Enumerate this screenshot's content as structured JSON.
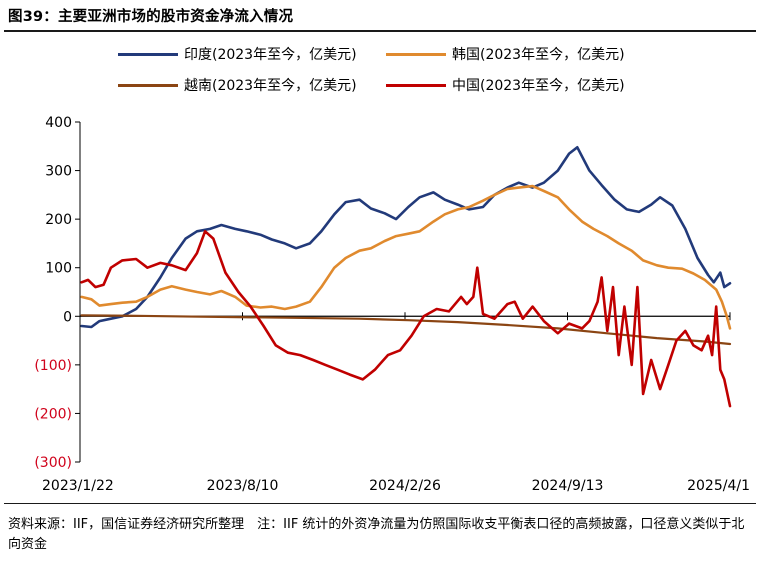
{
  "figure_title": "图39：主要亚洲市场的股市资金净流入情况",
  "source_note": "资料来源：IIF，国信证券经济研究所整理　注：IIF 统计的外资净流量为仿照国际收支平衡表口径的高频披露，口径意义类似于北向资金",
  "chart_data": {
    "type": "line",
    "title": "",
    "xlabel": "",
    "ylabel": "",
    "ylim": [
      -300,
      400
    ],
    "yticks": [
      -300,
      -200,
      -100,
      0,
      100,
      200,
      300,
      400
    ],
    "ytick_labels": [
      "(300)",
      "(200)",
      "(100)",
      "0",
      "100",
      "200",
      "300",
      "400"
    ],
    "negative_tick_color": "#d0021b",
    "xlim": [
      "2023-01-22",
      "2025-04-01"
    ],
    "xticks": [
      "2023-01-22",
      "2023-08-10",
      "2024-02-26",
      "2024-09-13",
      "2025-04-01"
    ],
    "xtick_labels": [
      "2023/1/22",
      "2023/8/10",
      "2024/2/26",
      "2024/9/13",
      "2025/4/1"
    ],
    "grid": false,
    "legend_position": "top",
    "series": [
      {
        "name": "印度(2023年至今，亿美元)",
        "color": "#223a7a",
        "points": [
          [
            "2023-01-24",
            -20
          ],
          [
            "2023-02-05",
            -22
          ],
          [
            "2023-02-15",
            -10
          ],
          [
            "2023-03-01",
            -5
          ],
          [
            "2023-03-15",
            0
          ],
          [
            "2023-04-01",
            15
          ],
          [
            "2023-04-15",
            40
          ],
          [
            "2023-05-01",
            80
          ],
          [
            "2023-05-15",
            120
          ],
          [
            "2023-06-01",
            160
          ],
          [
            "2023-06-15",
            175
          ],
          [
            "2023-07-01",
            180
          ],
          [
            "2023-07-15",
            188
          ],
          [
            "2023-08-01",
            180
          ],
          [
            "2023-08-15",
            175
          ],
          [
            "2023-09-01",
            168
          ],
          [
            "2023-09-15",
            158
          ],
          [
            "2023-10-01",
            150
          ],
          [
            "2023-10-15",
            140
          ],
          [
            "2023-11-01",
            150
          ],
          [
            "2023-11-15",
            175
          ],
          [
            "2023-12-01",
            210
          ],
          [
            "2023-12-15",
            235
          ],
          [
            "2024-01-01",
            240
          ],
          [
            "2024-01-15",
            222
          ],
          [
            "2024-02-01",
            212
          ],
          [
            "2024-02-15",
            200
          ],
          [
            "2024-03-01",
            225
          ],
          [
            "2024-03-15",
            245
          ],
          [
            "2024-04-01",
            255
          ],
          [
            "2024-04-15",
            240
          ],
          [
            "2024-05-01",
            230
          ],
          [
            "2024-05-15",
            220
          ],
          [
            "2024-06-01",
            225
          ],
          [
            "2024-06-15",
            250
          ],
          [
            "2024-07-01",
            265
          ],
          [
            "2024-07-15",
            275
          ],
          [
            "2024-08-01",
            265
          ],
          [
            "2024-08-15",
            275
          ],
          [
            "2024-09-01",
            300
          ],
          [
            "2024-09-15",
            335
          ],
          [
            "2024-09-25",
            348
          ],
          [
            "2024-10-10",
            300
          ],
          [
            "2024-10-25",
            270
          ],
          [
            "2024-11-10",
            240
          ],
          [
            "2024-11-25",
            220
          ],
          [
            "2024-12-10",
            215
          ],
          [
            "2024-12-25",
            230
          ],
          [
            "2025-01-05",
            245
          ],
          [
            "2025-01-20",
            228
          ],
          [
            "2025-02-05",
            180
          ],
          [
            "2025-02-20",
            120
          ],
          [
            "2025-03-05",
            85
          ],
          [
            "2025-03-12",
            70
          ],
          [
            "2025-03-20",
            90
          ],
          [
            "2025-03-25",
            60
          ],
          [
            "2025-04-01",
            68
          ]
        ]
      },
      {
        "name": "韩国(2023年至今，亿美元)",
        "color": "#e08a2e",
        "points": [
          [
            "2023-01-24",
            40
          ],
          [
            "2023-02-05",
            35
          ],
          [
            "2023-02-15",
            22
          ],
          [
            "2023-03-01",
            25
          ],
          [
            "2023-03-15",
            28
          ],
          [
            "2023-04-01",
            30
          ],
          [
            "2023-04-15",
            40
          ],
          [
            "2023-05-01",
            55
          ],
          [
            "2023-05-15",
            62
          ],
          [
            "2023-06-01",
            55
          ],
          [
            "2023-06-15",
            50
          ],
          [
            "2023-07-01",
            45
          ],
          [
            "2023-07-15",
            52
          ],
          [
            "2023-08-01",
            40
          ],
          [
            "2023-08-15",
            22
          ],
          [
            "2023-09-01",
            18
          ],
          [
            "2023-09-15",
            20
          ],
          [
            "2023-10-01",
            15
          ],
          [
            "2023-10-15",
            20
          ],
          [
            "2023-11-01",
            30
          ],
          [
            "2023-11-15",
            60
          ],
          [
            "2023-12-01",
            100
          ],
          [
            "2023-12-15",
            120
          ],
          [
            "2024-01-01",
            135
          ],
          [
            "2024-01-15",
            140
          ],
          [
            "2024-02-01",
            155
          ],
          [
            "2024-02-15",
            165
          ],
          [
            "2024-03-01",
            170
          ],
          [
            "2024-03-15",
            175
          ],
          [
            "2024-04-01",
            195
          ],
          [
            "2024-04-15",
            210
          ],
          [
            "2024-05-01",
            220
          ],
          [
            "2024-05-15",
            225
          ],
          [
            "2024-06-01",
            238
          ],
          [
            "2024-06-15",
            250
          ],
          [
            "2024-07-01",
            262
          ],
          [
            "2024-07-15",
            265
          ],
          [
            "2024-08-01",
            268
          ],
          [
            "2024-08-15",
            258
          ],
          [
            "2024-09-01",
            245
          ],
          [
            "2024-09-15",
            220
          ],
          [
            "2024-10-01",
            195
          ],
          [
            "2024-10-15",
            180
          ],
          [
            "2024-11-01",
            165
          ],
          [
            "2024-11-15",
            150
          ],
          [
            "2024-12-01",
            135
          ],
          [
            "2024-12-15",
            115
          ],
          [
            "2025-01-01",
            105
          ],
          [
            "2025-01-15",
            100
          ],
          [
            "2025-02-01",
            98
          ],
          [
            "2025-02-15",
            88
          ],
          [
            "2025-03-01",
            75
          ],
          [
            "2025-03-15",
            55
          ],
          [
            "2025-03-22",
            30
          ],
          [
            "2025-03-28",
            0
          ],
          [
            "2025-04-01",
            -25
          ]
        ]
      },
      {
        "name": "越南(2023年至今，亿美元)",
        "color": "#8b4513",
        "points": [
          [
            "2023-01-24",
            2
          ],
          [
            "2023-04-01",
            1
          ],
          [
            "2023-07-01",
            -1
          ],
          [
            "2023-10-01",
            -3
          ],
          [
            "2024-01-01",
            -5
          ],
          [
            "2024-03-01",
            -8
          ],
          [
            "2024-05-01",
            -12
          ],
          [
            "2024-07-01",
            -18
          ],
          [
            "2024-09-01",
            -25
          ],
          [
            "2024-11-01",
            -35
          ],
          [
            "2025-01-01",
            -45
          ],
          [
            "2025-03-01",
            -52
          ],
          [
            "2025-04-01",
            -57
          ]
        ]
      },
      {
        "name": "中国(2023年至今，亿美元)",
        "color": "#c00000",
        "points": [
          [
            "2023-01-24",
            70
          ],
          [
            "2023-02-01",
            75
          ],
          [
            "2023-02-10",
            60
          ],
          [
            "2023-02-20",
            65
          ],
          [
            "2023-03-01",
            100
          ],
          [
            "2023-03-15",
            115
          ],
          [
            "2023-04-01",
            118
          ],
          [
            "2023-04-15",
            100
          ],
          [
            "2023-05-01",
            110
          ],
          [
            "2023-05-15",
            105
          ],
          [
            "2023-06-01",
            95
          ],
          [
            "2023-06-15",
            130
          ],
          [
            "2023-06-25",
            175
          ],
          [
            "2023-07-05",
            160
          ],
          [
            "2023-07-20",
            90
          ],
          [
            "2023-08-05",
            50
          ],
          [
            "2023-08-20",
            20
          ],
          [
            "2023-09-05",
            -20
          ],
          [
            "2023-09-20",
            -60
          ],
          [
            "2023-10-05",
            -75
          ],
          [
            "2023-10-20",
            -80
          ],
          [
            "2023-11-05",
            -90
          ],
          [
            "2023-11-20",
            -100
          ],
          [
            "2023-12-05",
            -110
          ],
          [
            "2023-12-20",
            -120
          ],
          [
            "2024-01-05",
            -130
          ],
          [
            "2024-01-20",
            -110
          ],
          [
            "2024-02-05",
            -80
          ],
          [
            "2024-02-20",
            -70
          ],
          [
            "2024-03-05",
            -40
          ],
          [
            "2024-03-20",
            0
          ],
          [
            "2024-04-05",
            15
          ],
          [
            "2024-04-20",
            10
          ],
          [
            "2024-05-05",
            40
          ],
          [
            "2024-05-12",
            25
          ],
          [
            "2024-05-20",
            40
          ],
          [
            "2024-05-25",
            100
          ],
          [
            "2024-06-01",
            5
          ],
          [
            "2024-06-15",
            -5
          ],
          [
            "2024-07-01",
            25
          ],
          [
            "2024-07-10",
            30
          ],
          [
            "2024-07-20",
            -5
          ],
          [
            "2024-08-01",
            20
          ],
          [
            "2024-08-15",
            -10
          ],
          [
            "2024-09-01",
            -35
          ],
          [
            "2024-09-15",
            -15
          ],
          [
            "2024-10-01",
            -25
          ],
          [
            "2024-10-10",
            -10
          ],
          [
            "2024-10-20",
            30
          ],
          [
            "2024-10-25",
            80
          ],
          [
            "2024-11-01",
            -30
          ],
          [
            "2024-11-08",
            60
          ],
          [
            "2024-11-15",
            -80
          ],
          [
            "2024-11-22",
            20
          ],
          [
            "2024-12-01",
            -100
          ],
          [
            "2024-12-08",
            60
          ],
          [
            "2024-12-15",
            -160
          ],
          [
            "2024-12-25",
            -90
          ],
          [
            "2025-01-05",
            -150
          ],
          [
            "2025-01-15",
            -100
          ],
          [
            "2025-01-25",
            -50
          ],
          [
            "2025-02-05",
            -30
          ],
          [
            "2025-02-15",
            -60
          ],
          [
            "2025-02-25",
            -70
          ],
          [
            "2025-03-05",
            -40
          ],
          [
            "2025-03-10",
            -80
          ],
          [
            "2025-03-15",
            20
          ],
          [
            "2025-03-20",
            -110
          ],
          [
            "2025-03-25",
            -130
          ],
          [
            "2025-04-01",
            -185
          ]
        ]
      }
    ]
  }
}
